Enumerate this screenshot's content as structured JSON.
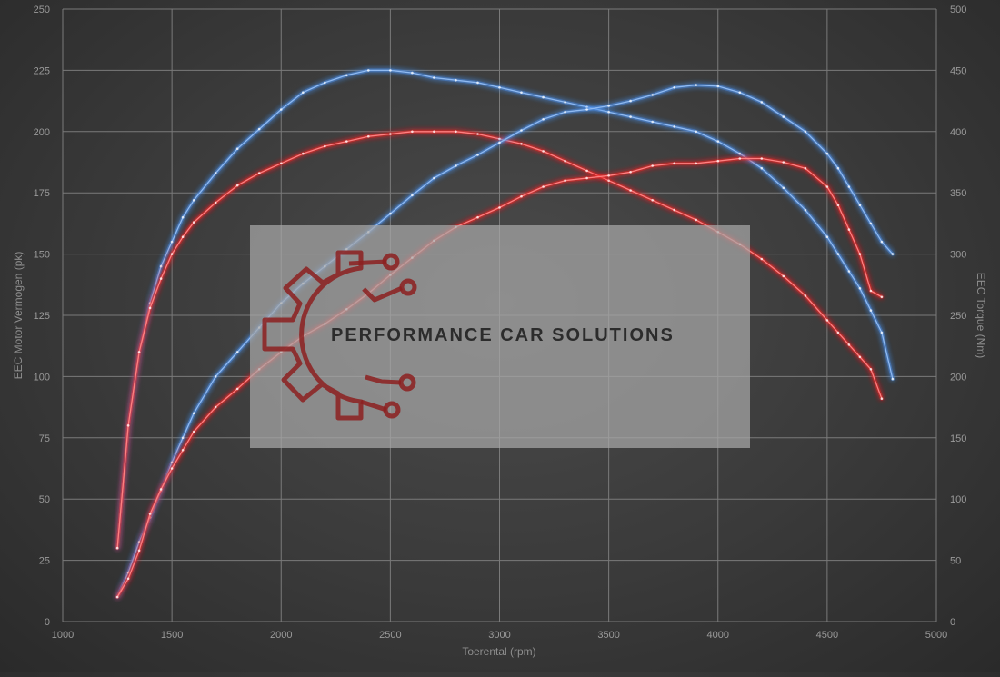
{
  "chart_data": {
    "type": "line",
    "xlabel": "Toerental (rpm)",
    "ylabel_left": "EEC Motor Vermogen (pk)",
    "ylabel_right": "EEC Torque (Nm)",
    "xlim": [
      1000,
      5000
    ],
    "ylim_left": [
      0,
      250
    ],
    "ylim_right": [
      0,
      500
    ],
    "x_ticks": [
      "1000",
      "1500",
      "2000",
      "2500",
      "3000",
      "3500",
      "4000",
      "4500",
      "5000"
    ],
    "y_left_ticks": [
      "0",
      "25",
      "50",
      "75",
      "100",
      "125",
      "150",
      "175",
      "200",
      "225",
      "250"
    ],
    "y_right_ticks": [
      "0",
      "50",
      "100",
      "150",
      "200",
      "250",
      "300",
      "350",
      "400",
      "450",
      "500"
    ],
    "grid": true,
    "colors": {
      "tuned": "#4a8ee6",
      "stock": "#e8282a",
      "grid": "#7a7a7a"
    },
    "series": [
      {
        "axis": "left",
        "color": "#4a8ee6",
        "x": [
          1250,
          1300,
          1350,
          1400,
          1450,
          1500,
          1550,
          1600,
          1700,
          1800,
          1900,
          2000,
          2100,
          2200,
          2300,
          2400,
          2500,
          2600,
          2700,
          2800,
          2900,
          3000,
          3100,
          3200,
          3300,
          3400,
          3500,
          3600,
          3700,
          3800,
          3900,
          4000,
          4100,
          4200,
          4300,
          4400,
          4500,
          4550,
          4600,
          4650,
          4700,
          4750,
          4800
        ],
        "y": [
          30,
          80,
          110,
          130,
          145,
          155,
          165,
          172,
          183,
          193,
          201,
          209,
          216,
          220,
          223,
          225,
          225,
          224,
          222,
          221,
          220,
          218,
          216,
          214,
          212,
          210,
          208,
          206,
          204,
          202,
          200,
          196,
          191,
          185,
          177,
          168,
          157,
          150,
          143,
          136,
          127,
          118,
          99
        ]
      },
      {
        "axis": "left",
        "color": "#e8282a",
        "x": [
          1250,
          1300,
          1350,
          1400,
          1450,
          1500,
          1550,
          1600,
          1700,
          1800,
          1900,
          2000,
          2100,
          2200,
          2300,
          2400,
          2500,
          2600,
          2700,
          2800,
          2900,
          3000,
          3100,
          3200,
          3300,
          3400,
          3500,
          3600,
          3700,
          3800,
          3900,
          4000,
          4100,
          4200,
          4300,
          4400,
          4500,
          4550,
          4600,
          4650,
          4700,
          4750
        ],
        "y": [
          30,
          80,
          110,
          128,
          140,
          150,
          157,
          163,
          171,
          178,
          183,
          187,
          191,
          194,
          196,
          198,
          199,
          200,
          200,
          200,
          199,
          197,
          195,
          192,
          188,
          184,
          180,
          176,
          172,
          168,
          164,
          159,
          154,
          148,
          141,
          133,
          123,
          118,
          113,
          108,
          103,
          91
        ]
      },
      {
        "axis": "right",
        "color": "#4a8ee6",
        "x": [
          1250,
          1300,
          1350,
          1400,
          1450,
          1500,
          1550,
          1600,
          1700,
          1800,
          1900,
          2000,
          2100,
          2200,
          2300,
          2400,
          2500,
          2600,
          2700,
          2800,
          2900,
          3000,
          3100,
          3200,
          3300,
          3400,
          3500,
          3600,
          3700,
          3800,
          3900,
          4000,
          4100,
          4200,
          4300,
          4400,
          4500,
          4550,
          4600,
          4650,
          4700,
          4750,
          4800
        ],
        "y": [
          20,
          40,
          65,
          85,
          107,
          130,
          150,
          170,
          200,
          220,
          240,
          260,
          276,
          290,
          304,
          318,
          333,
          348,
          362,
          372,
          381,
          391,
          401,
          410,
          416,
          418,
          421,
          425,
          430,
          436,
          438,
          437,
          432,
          424,
          412,
          400,
          382,
          370,
          355,
          340,
          325,
          310,
          300
        ]
      },
      {
        "axis": "right",
        "color": "#e8282a",
        "x": [
          1250,
          1300,
          1350,
          1400,
          1450,
          1500,
          1550,
          1600,
          1700,
          1800,
          1900,
          2000,
          2100,
          2200,
          2300,
          2400,
          2500,
          2600,
          2700,
          2800,
          2900,
          3000,
          3100,
          3200,
          3300,
          3400,
          3500,
          3600,
          3700,
          3800,
          3900,
          4000,
          4100,
          4200,
          4300,
          4400,
          4500,
          4550,
          4600,
          4650,
          4700,
          4750
        ],
        "y": [
          20,
          35,
          58,
          88,
          108,
          125,
          140,
          155,
          175,
          190,
          206,
          220,
          233,
          243,
          255,
          268,
          283,
          297,
          311,
          322,
          330,
          338,
          347,
          355,
          360,
          362,
          364,
          367,
          372,
          374,
          374,
          376,
          378,
          378,
          375,
          370,
          355,
          340,
          320,
          300,
          270,
          265
        ]
      }
    ]
  },
  "watermark": {
    "text": "PERFORMANCE CAR SOLUTIONS",
    "icon": "gear-circuit-logo-icon",
    "logo_color": "#8c2020"
  }
}
